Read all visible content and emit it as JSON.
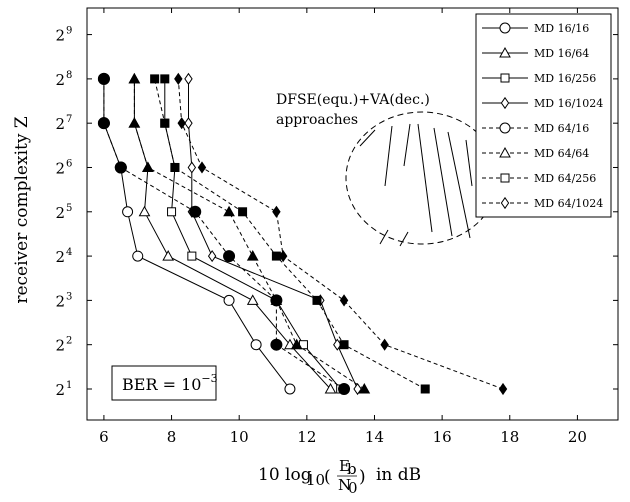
{
  "chart_data": {
    "type": "line",
    "xlabel": "10 log10 (Eb/N0) in dB",
    "ylabel": "receiver complexity Z",
    "xlim": [
      5.5,
      21.2
    ],
    "ylim_log2": [
      0.3,
      9.6
    ],
    "x_ticks": [
      6,
      8,
      10,
      12,
      14,
      16,
      18,
      20
    ],
    "y_tick_base": "2",
    "y_tick_exponents": [
      "1",
      "2",
      "3",
      "4",
      "5",
      "6",
      "7",
      "8",
      "9"
    ],
    "grid": false,
    "legend_position": "top-right",
    "annotation": {
      "line1": "DFSE(equ.)+VA(dec.)",
      "line2": "approaches"
    },
    "ber_box": {
      "prefix": "BER = 10",
      "exponent": "−3"
    },
    "series": [
      {
        "name": "MD 16/16",
        "style": "solid",
        "marker": "circle",
        "points": [
          [
            11.5,
            2
          ],
          [
            10.5,
            4
          ],
          [
            9.7,
            8
          ],
          [
            7.0,
            16
          ],
          [
            6.7,
            32
          ],
          [
            6.5,
            64
          ],
          [
            6.0,
            128
          ],
          [
            6.0,
            256
          ]
        ],
        "filled": [
          false,
          false,
          false,
          false,
          false,
          true,
          true,
          true
        ]
      },
      {
        "name": "MD 16/64",
        "style": "solid",
        "marker": "triangle",
        "points": [
          [
            12.7,
            2
          ],
          [
            11.5,
            4
          ],
          [
            10.4,
            8
          ],
          [
            7.9,
            16
          ],
          [
            7.2,
            32
          ],
          [
            7.3,
            64
          ],
          [
            6.9,
            128
          ],
          [
            6.9,
            256
          ]
        ],
        "filled": [
          false,
          false,
          false,
          false,
          false,
          true,
          true,
          true
        ]
      },
      {
        "name": "MD 16/256",
        "style": "solid",
        "marker": "square",
        "points": [
          [
            13.0,
            2
          ],
          [
            11.9,
            4
          ],
          [
            11.1,
            8
          ],
          [
            8.6,
            16
          ],
          [
            8.0,
            32
          ],
          [
            8.1,
            64
          ],
          [
            7.8,
            128
          ],
          [
            7.8,
            256
          ]
        ],
        "filled": [
          false,
          false,
          false,
          false,
          false,
          true,
          true,
          true
        ]
      },
      {
        "name": "MD 16/1024",
        "style": "solid",
        "marker": "diamond",
        "points": [
          [
            13.5,
            2
          ],
          [
            12.9,
            4
          ],
          [
            12.4,
            8
          ],
          [
            9.2,
            16
          ],
          [
            8.6,
            32
          ],
          [
            8.6,
            64
          ],
          [
            8.5,
            128
          ],
          [
            8.5,
            256
          ]
        ],
        "filled": [
          false,
          false,
          false,
          false,
          false,
          false,
          false,
          false
        ]
      },
      {
        "name": "MD 64/16",
        "style": "dashed",
        "marker": "circle",
        "points": [
          [
            13.1,
            2
          ],
          [
            11.1,
            4
          ],
          [
            11.1,
            8
          ],
          [
            9.7,
            16
          ],
          [
            8.7,
            32
          ],
          [
            6.5,
            64
          ],
          [
            6.0,
            128
          ],
          [
            6.0,
            256
          ]
        ],
        "filled": [
          true,
          true,
          true,
          true,
          true,
          true,
          true,
          true
        ]
      },
      {
        "name": "MD 64/64",
        "style": "dashed",
        "marker": "triangle",
        "points": [
          [
            13.7,
            2
          ],
          [
            11.7,
            4
          ],
          [
            11.1,
            8
          ],
          [
            10.4,
            16
          ],
          [
            9.7,
            32
          ],
          [
            7.3,
            64
          ],
          [
            6.9,
            128
          ],
          [
            6.9,
            256
          ]
        ],
        "filled": [
          true,
          true,
          true,
          true,
          true,
          true,
          true,
          true
        ]
      },
      {
        "name": "MD 64/256",
        "style": "dashed",
        "marker": "square",
        "points": [
          [
            15.5,
            2
          ],
          [
            13.1,
            4
          ],
          [
            12.3,
            8
          ],
          [
            11.1,
            16
          ],
          [
            10.1,
            32
          ],
          [
            8.1,
            64
          ],
          [
            7.8,
            128
          ],
          [
            7.5,
            256
          ]
        ],
        "filled": [
          true,
          true,
          true,
          true,
          true,
          true,
          true,
          true
        ]
      },
      {
        "name": "MD 64/1024",
        "style": "dashed",
        "marker": "diamond",
        "points": [
          [
            17.8,
            2
          ],
          [
            14.3,
            4
          ],
          [
            13.1,
            8
          ],
          [
            11.3,
            16
          ],
          [
            11.1,
            32
          ],
          [
            8.9,
            64
          ],
          [
            8.3,
            128
          ],
          [
            8.2,
            256
          ]
        ],
        "filled": [
          true,
          true,
          true,
          true,
          true,
          true,
          true,
          true
        ]
      }
    ]
  }
}
